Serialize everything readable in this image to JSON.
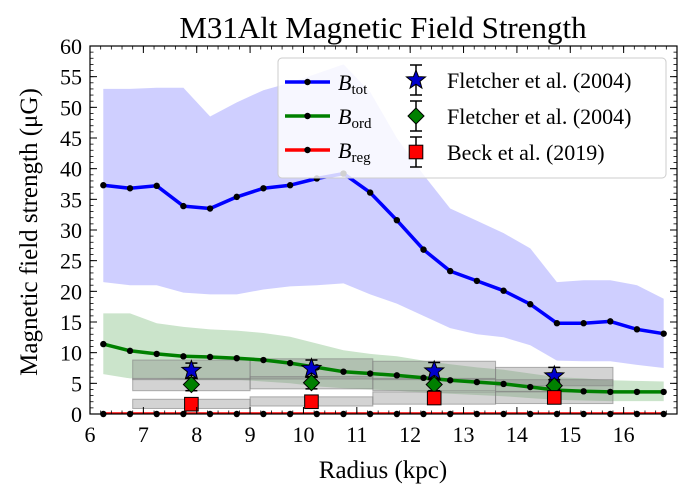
{
  "chart_data": {
    "type": "line",
    "title": "M31Alt Magnetic Field Strength",
    "xlabel": "Radius (kpc)",
    "ylabel": "Magnetic field strength (μG)",
    "xlim": [
      6,
      17
    ],
    "ylim": [
      0,
      60
    ],
    "xticks": [
      6,
      7,
      8,
      9,
      10,
      11,
      12,
      13,
      14,
      15,
      16
    ],
    "yticks": [
      0,
      5,
      10,
      15,
      20,
      25,
      30,
      35,
      40,
      45,
      50,
      55,
      60
    ],
    "x": [
      6.25,
      6.75,
      7.25,
      7.75,
      8.25,
      8.75,
      9.25,
      9.75,
      10.25,
      10.75,
      11.25,
      11.75,
      12.25,
      12.75,
      13.25,
      13.75,
      14.25,
      14.75,
      15.25,
      15.75,
      16.25,
      16.75
    ],
    "series": [
      {
        "name": "B_tot",
        "legend_main": "B",
        "legend_sub": "tot",
        "color": "#0000ff",
        "values": [
          37.3,
          36.8,
          37.2,
          33.9,
          33.5,
          35.4,
          36.8,
          37.3,
          38.4,
          39.2,
          36.1,
          31.6,
          26.8,
          23.3,
          21.7,
          20.1,
          17.9,
          14.8,
          14.8,
          15.1,
          13.8,
          13.1
        ],
        "band_lower": [
          21.5,
          21.0,
          21.0,
          19.8,
          19.5,
          19.5,
          20.3,
          20.8,
          21.0,
          21.3,
          19.5,
          18.0,
          16.0,
          14.0,
          13.0,
          12.5,
          11.2,
          8.7,
          8.6,
          8.6,
          8.0,
          7.5
        ],
        "band_upper": [
          53.0,
          53.0,
          53.2,
          53.2,
          48.5,
          50.8,
          52.8,
          54.0,
          55.5,
          57.0,
          52.5,
          45.0,
          39.0,
          33.5,
          31.5,
          29.5,
          27.0,
          21.5,
          21.8,
          21.8,
          21.0,
          18.8
        ],
        "band_color": "#ccccff"
      },
      {
        "name": "B_ord",
        "legend_main": "B",
        "legend_sub": "ord",
        "color": "#008000",
        "values": [
          11.4,
          10.3,
          9.8,
          9.4,
          9.3,
          9.1,
          8.8,
          8.3,
          7.6,
          6.9,
          6.6,
          6.3,
          5.9,
          5.5,
          5.2,
          4.9,
          4.4,
          3.9,
          3.7,
          3.6,
          3.6,
          3.6
        ],
        "band_lower": [
          6.5,
          5.8,
          5.8,
          5.6,
          5.6,
          5.6,
          5.3,
          5.0,
          4.5,
          4.2,
          4.0,
          3.8,
          3.5,
          3.3,
          3.1,
          2.9,
          2.6,
          2.3,
          2.2,
          2.1,
          2.1,
          2.1
        ],
        "band_upper": [
          16.4,
          16.4,
          14.8,
          14.2,
          13.8,
          13.6,
          13.2,
          12.6,
          11.5,
          10.4,
          9.8,
          9.4,
          8.7,
          8.1,
          7.6,
          7.2,
          6.6,
          6.0,
          5.8,
          5.5,
          5.4,
          5.3
        ],
        "band_color": "#c8e3c8"
      },
      {
        "name": "B_reg",
        "legend_main": "B",
        "legend_sub": "reg",
        "color": "#ff0000",
        "values": [
          0,
          0,
          0,
          0,
          0,
          0,
          0,
          0,
          0,
          0,
          0,
          0,
          0,
          0,
          0,
          0,
          0,
          0,
          0,
          0,
          0,
          0
        ]
      }
    ],
    "observations": [
      {
        "name": "Fletcher et al. (2004)",
        "marker": "star",
        "color": "#0000cc",
        "points": [
          {
            "x": 7.9,
            "y": 7.1,
            "yerr": 1.2,
            "xmin": 6.8,
            "xmax": 9.0,
            "ymin": 5.6,
            "ymax": 8.8
          },
          {
            "x": 10.15,
            "y": 7.4,
            "yerr": 1.4,
            "xmin": 9.0,
            "xmax": 11.3,
            "ymin": 5.7,
            "ymax": 9.0
          },
          {
            "x": 12.45,
            "y": 7.0,
            "yerr": 1.4,
            "xmin": 11.3,
            "xmax": 13.6,
            "ymin": 5.6,
            "ymax": 8.6
          },
          {
            "x": 14.7,
            "y": 6.2,
            "yerr": 1.4,
            "xmin": 13.6,
            "xmax": 15.8,
            "ymin": 4.6,
            "ymax": 7.6
          }
        ]
      },
      {
        "name": "Fletcher et al. (2004)",
        "marker": "diamond",
        "color": "#008000",
        "points": [
          {
            "x": 7.9,
            "y": 4.8,
            "yerr": 1.0,
            "xmin": 6.8,
            "xmax": 9.0,
            "ymin": 3.8,
            "ymax": 5.8
          },
          {
            "x": 10.15,
            "y": 5.1,
            "yerr": 1.0,
            "xmin": 9.0,
            "xmax": 11.3,
            "ymin": 4.1,
            "ymax": 6.1
          },
          {
            "x": 12.45,
            "y": 4.8,
            "yerr": 1.0,
            "xmin": 11.3,
            "xmax": 13.6,
            "ymin": 3.8,
            "ymax": 5.8
          },
          {
            "x": 14.7,
            "y": 4.6,
            "yerr": 1.0,
            "xmin": 13.6,
            "xmax": 15.8,
            "ymin": 3.6,
            "ymax": 5.6
          }
        ]
      },
      {
        "name": "Beck et al. (2019)",
        "marker": "square",
        "color": "#ff0000",
        "points": [
          {
            "x": 7.9,
            "y": 1.6,
            "yerr": 0.8,
            "xmin": 6.8,
            "xmax": 9.0,
            "ymin": 0.9,
            "ymax": 2.4
          },
          {
            "x": 10.15,
            "y": 2.0,
            "yerr": 0.8,
            "xmin": 9.0,
            "xmax": 11.3,
            "ymin": 1.3,
            "ymax": 2.8
          },
          {
            "x": 12.45,
            "y": 2.6,
            "yerr": 1.0,
            "xmin": 11.3,
            "xmax": 13.6,
            "ymin": 1.6,
            "ymax": 3.6
          },
          {
            "x": 14.7,
            "y": 2.7,
            "yerr": 1.0,
            "xmin": 13.6,
            "xmax": 15.8,
            "ymin": 1.7,
            "ymax": 3.7
          }
        ]
      }
    ],
    "legend_position": "upper right",
    "grid": false
  }
}
